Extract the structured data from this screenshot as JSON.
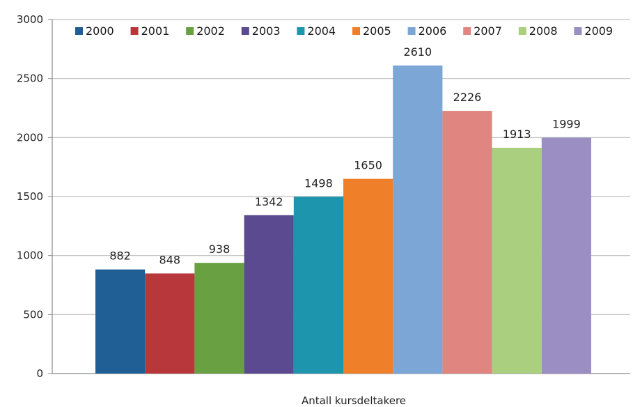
{
  "chart_data": {
    "type": "bar",
    "title": "",
    "xlabel": "Antall kursdeltakere",
    "ylabel": "",
    "ylim": [
      0,
      3000
    ],
    "yticks": [
      0,
      500,
      1000,
      1500,
      2000,
      2500,
      3000
    ],
    "grid": true,
    "legend_position": "top",
    "series": [
      {
        "name": "2000",
        "value": 882,
        "color": "#1f5f96"
      },
      {
        "name": "2001",
        "value": 848,
        "color": "#b8373a"
      },
      {
        "name": "2002",
        "value": 938,
        "color": "#68a042"
      },
      {
        "name": "2003",
        "value": 1342,
        "color": "#5b4a8f"
      },
      {
        "name": "2004",
        "value": 1498,
        "color": "#1d95ad"
      },
      {
        "name": "2005",
        "value": 1650,
        "color": "#f07f2a"
      },
      {
        "name": "2006",
        "value": 2610,
        "color": "#7ba6d6"
      },
      {
        "name": "2007",
        "value": 2226,
        "color": "#e0857f"
      },
      {
        "name": "2008",
        "value": 1913,
        "color": "#aacf7e"
      },
      {
        "name": "2009",
        "value": 1999,
        "color": "#9b8ec3"
      }
    ]
  }
}
